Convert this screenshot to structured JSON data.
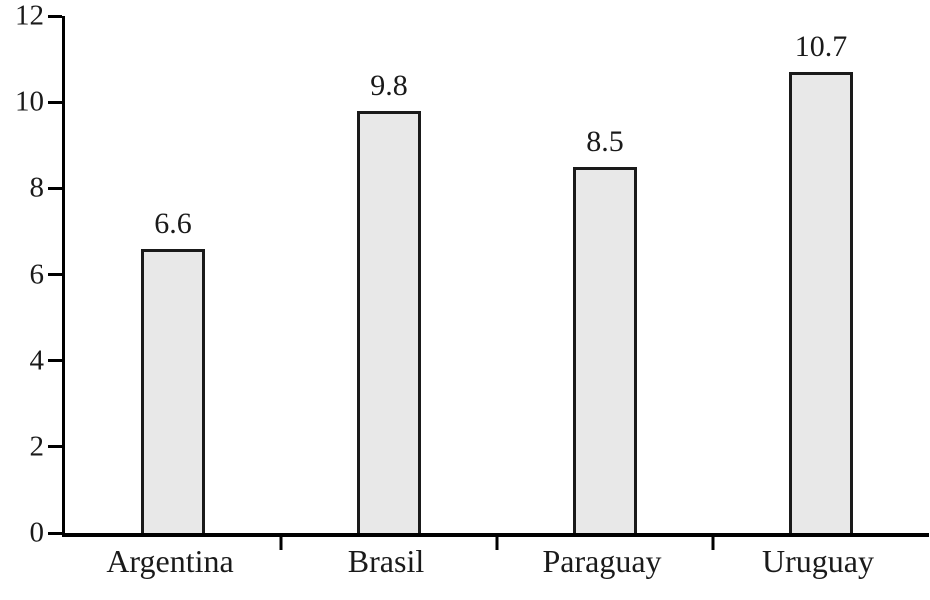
{
  "chart_data": {
    "type": "bar",
    "categories": [
      "Argentina",
      "Brasil",
      "Paraguay",
      "Uruguay"
    ],
    "values": [
      6.6,
      9.8,
      8.5,
      10.7
    ],
    "value_labels": [
      "6.6",
      "9.8",
      "8.5",
      "10.7"
    ],
    "title": "",
    "xlabel": "",
    "ylabel": "",
    "ylim": [
      0,
      12
    ],
    "y_ticks": [
      0,
      2,
      4,
      6,
      8,
      10,
      12
    ],
    "grid": false,
    "legend": false,
    "bar_fill": "#e8e8e8",
    "bar_border": "#1a1a1a",
    "axis_color": "#000000",
    "text_color": "#1a1a1a",
    "background": "#ffffff"
  }
}
